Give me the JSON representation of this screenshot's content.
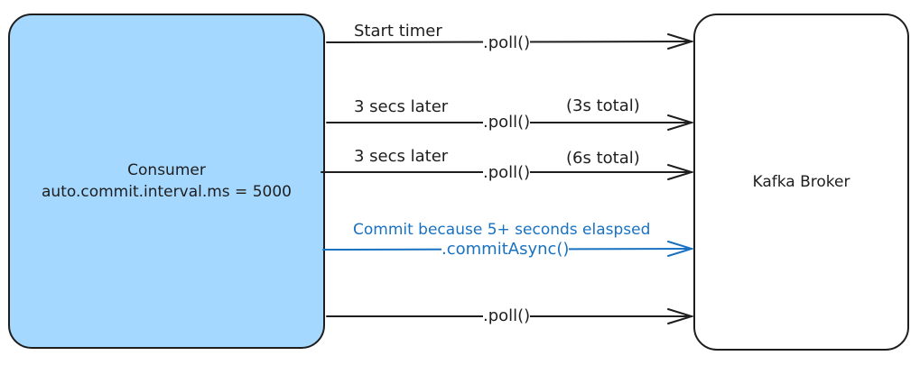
{
  "consumer": {
    "name": "Consumer",
    "config": "auto.commit.interval.ms = 5000"
  },
  "broker": {
    "name": "Kafka Broker"
  },
  "colors": {
    "consumer_fill": "#a5d8ff",
    "stroke": "#1e1e1e",
    "commit_blue": "#1971c2"
  },
  "steps": [
    {
      "label": "Start timer",
      "call": ".poll()",
      "note": ""
    },
    {
      "label": "3 secs later",
      "call": ".poll()",
      "note": "(3s total)"
    },
    {
      "label": "3 secs later",
      "call": ".poll()",
      "note": "(6s total)"
    },
    {
      "label": "Commit because 5+ seconds elaspsed",
      "call": ".commitAsync()",
      "note": ""
    },
    {
      "label": "",
      "call": ".poll()",
      "note": ""
    }
  ]
}
